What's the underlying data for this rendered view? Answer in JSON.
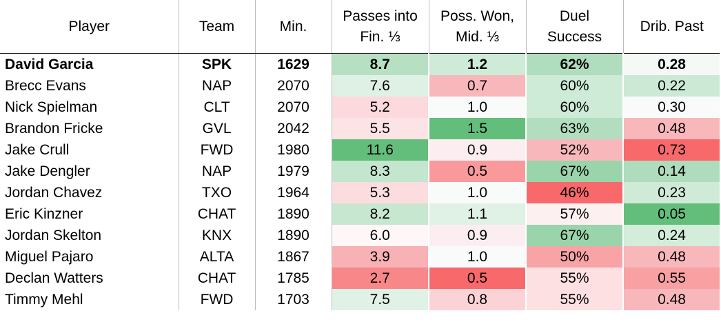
{
  "chart_data": {
    "type": "table",
    "columns": [
      "Player",
      "Team",
      "Min.",
      "Passes into Fin. ⅓",
      "Poss. Won, Mid. ⅓",
      "Duel Success",
      "Drib. Past"
    ],
    "column_lines": [
      [
        "Player"
      ],
      [
        "Team"
      ],
      [
        "Min."
      ],
      [
        "Passes into",
        "Fin. ⅓"
      ],
      [
        "Poss. Won,",
        "Mid. ⅓"
      ],
      [
        "Duel",
        "Success"
      ],
      [
        "Drib. Past"
      ]
    ],
    "highlight_row": 0,
    "rows": [
      {
        "player": "David Garcia",
        "team": "SPK",
        "min": "1629",
        "passes": "8.7",
        "poss": "1.2",
        "duel": "62%",
        "drib": "0.28"
      },
      {
        "player": "Brecc Evans",
        "team": "NAP",
        "min": "2070",
        "passes": "7.6",
        "poss": "0.7",
        "duel": "60%",
        "drib": "0.22"
      },
      {
        "player": "Nick Spielman",
        "team": "CLT",
        "min": "2070",
        "passes": "5.2",
        "poss": "1.0",
        "duel": "60%",
        "drib": "0.30"
      },
      {
        "player": "Brandon Fricke",
        "team": "GVL",
        "min": "2042",
        "passes": "5.5",
        "poss": "1.5",
        "duel": "63%",
        "drib": "0.48"
      },
      {
        "player": "Jake Crull",
        "team": "FWD",
        "min": "1980",
        "passes": "11.6",
        "poss": "0.9",
        "duel": "52%",
        "drib": "0.73"
      },
      {
        "player": "Jake Dengler",
        "team": "NAP",
        "min": "1979",
        "passes": "8.3",
        "poss": "0.5",
        "duel": "67%",
        "drib": "0.14"
      },
      {
        "player": "Jordan Chavez",
        "team": "TXO",
        "min": "1964",
        "passes": "5.3",
        "poss": "1.0",
        "duel": "46%",
        "drib": "0.23"
      },
      {
        "player": "Eric Kinzner",
        "team": "CHAT",
        "min": "1890",
        "passes": "8.2",
        "poss": "1.1",
        "duel": "57%",
        "drib": "0.05"
      },
      {
        "player": "Jordan Skelton",
        "team": "KNX",
        "min": "1890",
        "passes": "6.0",
        "poss": "0.9",
        "duel": "67%",
        "drib": "0.24"
      },
      {
        "player": "Miguel Pajaro",
        "team": "ALTA",
        "min": "1867",
        "passes": "3.9",
        "poss": "1.0",
        "duel": "50%",
        "drib": "0.48"
      },
      {
        "player": "Declan Watters",
        "team": "CHAT",
        "min": "1785",
        "passes": "2.7",
        "poss": "0.5",
        "duel": "55%",
        "drib": "0.55"
      },
      {
        "player": "Timmy Mehl",
        "team": "FWD",
        "min": "1703",
        "passes": "7.5",
        "poss": "0.8",
        "duel": "55%",
        "drib": "0.48"
      }
    ],
    "cell_colors": [
      [
        "#b7e0c3",
        "#cdebd6",
        "#b0ddbd",
        "#f4f9f6"
      ],
      [
        "#dff1e5",
        "#f8b7bb",
        "#cdebd6",
        "#cbe9d4"
      ],
      [
        "#fbd9dc",
        "#f8fbf9",
        "#cdebd6",
        "#f8fbf9"
      ],
      [
        "#fce3e5",
        "#63be7b",
        "#b2deBf",
        "#f8b7bb"
      ],
      [
        "#63be7b",
        "#fceef0",
        "#f8b7bb",
        "#f8696b"
      ],
      [
        "#c4e6ce",
        "#f9999c",
        "#99d4aa",
        "#aedcbc"
      ],
      [
        "#fbdde0",
        "#f8fbf9",
        "#f8696b",
        "#cfebd7"
      ],
      [
        "#c7e7d0",
        "#e0f1e5",
        "#fcf0f1",
        "#63be7b"
      ],
      [
        "#fef6f7",
        "#fceef0",
        "#99d4aa",
        "#d3edda"
      ],
      [
        "#f8b1b4",
        "#f8fbf9",
        "#f8a4a7",
        "#f8b7bb"
      ],
      [
        "#f8878a",
        "#f8696b",
        "#fce0e2",
        "#f9a0a3"
      ],
      [
        "#e0f1e5",
        "#fbd3d6",
        "#fce0e2",
        "#f8b7bb"
      ]
    ]
  }
}
